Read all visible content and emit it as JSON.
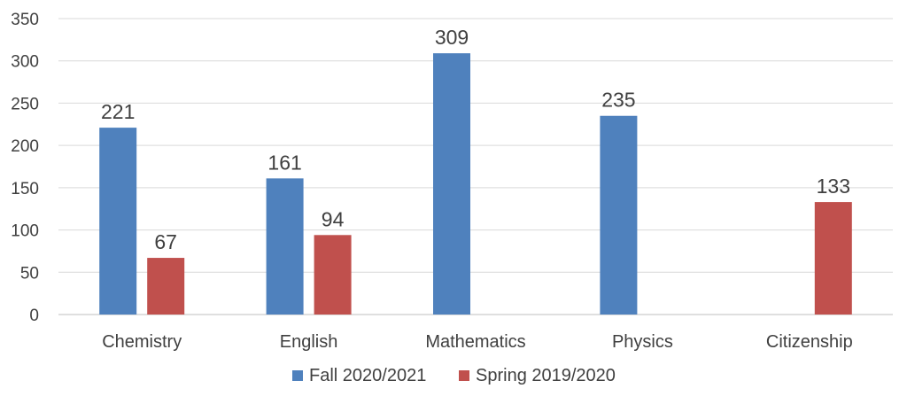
{
  "chart_data": {
    "type": "bar",
    "title": "",
    "xlabel": "",
    "ylabel": "",
    "ylim": [
      0,
      350
    ],
    "yticks": [
      0,
      50,
      100,
      150,
      200,
      250,
      300,
      350
    ],
    "grid": true,
    "legend_position": "bottom",
    "categories": [
      "Chemistry",
      "English",
      "Mathematics",
      "Physics",
      "Citizenship"
    ],
    "series": [
      {
        "name": "Fall 2020/2021",
        "color": "#4F81BD",
        "values": [
          221,
          161,
          309,
          235,
          null
        ]
      },
      {
        "name": "Spring 2019/2020",
        "color": "#C0504D",
        "values": [
          67,
          94,
          null,
          null,
          133
        ]
      }
    ]
  }
}
